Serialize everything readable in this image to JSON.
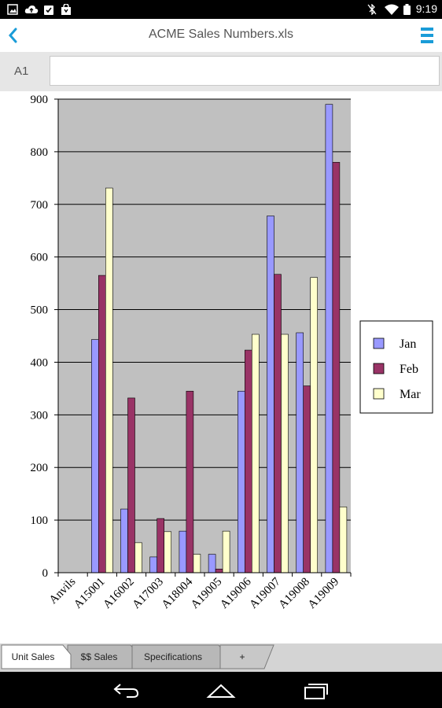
{
  "status_bar": {
    "time": "9:19",
    "left_icons": [
      "gallery-icon",
      "cloud-upload-icon",
      "clipboard-check-icon",
      "shopping-bag-icon"
    ],
    "right_icons": [
      "bluetooth-off-icon",
      "wifi-icon",
      "battery-icon"
    ]
  },
  "app_bar": {
    "title": "ACME Sales Numbers.xls",
    "accent_color": "#1a9cd8"
  },
  "formula_bar": {
    "cell_reference": "A1",
    "value": ""
  },
  "chart_data": {
    "type": "bar",
    "categories": [
      "Anvils",
      "A15001",
      "A16002",
      "A17003",
      "A18004",
      "A19005",
      "A19006",
      "A19007",
      "A19008",
      "A19009"
    ],
    "series": [
      {
        "name": "Jan",
        "color": "#9999ff",
        "values": [
          null,
          443,
          121,
          30,
          79,
          35,
          345,
          678,
          456,
          890
        ]
      },
      {
        "name": "Feb",
        "color": "#993366",
        "values": [
          null,
          565,
          332,
          103,
          345,
          7,
          423,
          567,
          355,
          780
        ]
      },
      {
        "name": "Mar",
        "color": "#ffffcc",
        "values": [
          null,
          731,
          57,
          78,
          35,
          79,
          453,
          453,
          561,
          125
        ]
      }
    ],
    "y_ticks": [
      "0",
      "100",
      "200",
      "300",
      "400",
      "500",
      "600",
      "700",
      "800",
      "900"
    ],
    "ylim": [
      0,
      900
    ],
    "grid": true,
    "plot_background": "#c0c0c0",
    "legend_position": "right",
    "title": "",
    "xlabel": "",
    "ylabel": ""
  },
  "sheet_tabs": [
    {
      "label": "Unit Sales",
      "active": true
    },
    {
      "label": "$$ Sales",
      "active": false
    },
    {
      "label": "Specifications",
      "active": false
    },
    {
      "label": "+",
      "active": false
    }
  ]
}
